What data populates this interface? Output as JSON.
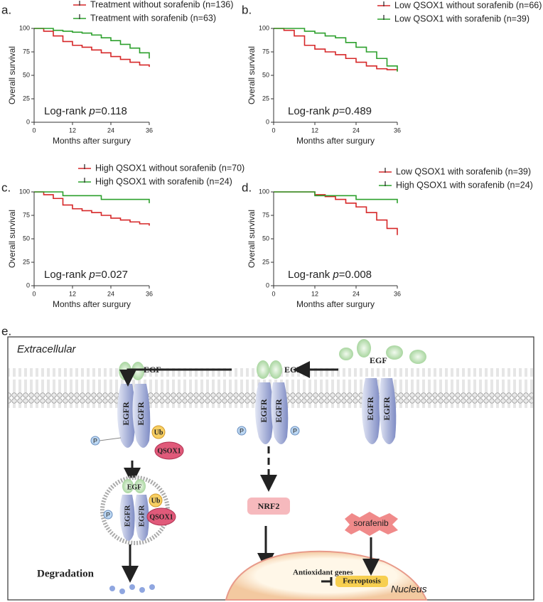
{
  "chart_data": [
    {
      "type": "line",
      "panel": "a.",
      "xlabel": "Months after surgury",
      "ylabel": "Overall survival",
      "annotation": [
        "Log-rank ",
        "p",
        "=0.118"
      ],
      "x": [
        0,
        3,
        6,
        9,
        12,
        15,
        18,
        21,
        24,
        27,
        30,
        33,
        36
      ],
      "series": [
        {
          "name": "Treatment without sorafenib (n=136)",
          "color": "#d62728",
          "values": [
            100,
            97,
            92,
            86,
            82,
            80,
            77,
            74,
            70,
            67,
            64,
            61,
            59
          ]
        },
        {
          "name": "Treatment with sorafenib (n=63)",
          "color": "#2ca02c",
          "values": [
            100,
            100,
            98,
            97,
            96,
            95,
            93,
            90,
            87,
            83,
            79,
            74,
            68
          ]
        }
      ],
      "xlim": [
        0,
        36
      ],
      "xticks": [
        0,
        12,
        24,
        36
      ],
      "ylim": [
        0,
        100
      ],
      "yticks": [
        0,
        25,
        50,
        75,
        100
      ]
    },
    {
      "type": "line",
      "panel": "b.",
      "xlabel": "Months after surgury",
      "ylabel": "Overall survival",
      "annotation": [
        "Log-rank ",
        "p",
        "=0.489"
      ],
      "x": [
        0,
        3,
        6,
        9,
        12,
        15,
        18,
        21,
        24,
        27,
        30,
        33,
        36
      ],
      "series": [
        {
          "name": "Low QSOX1 without sorafenib (n=66)",
          "color": "#d62728",
          "values": [
            100,
            98,
            92,
            82,
            78,
            75,
            72,
            68,
            64,
            60,
            57,
            56,
            55
          ]
        },
        {
          "name": "Low QSOX1 with sorafenib (n=39)",
          "color": "#2ca02c",
          "values": [
            100,
            100,
            100,
            97,
            95,
            92,
            90,
            85,
            80,
            75,
            68,
            60,
            54
          ]
        }
      ],
      "xlim": [
        0,
        36
      ],
      "xticks": [
        0,
        12,
        24,
        36
      ],
      "ylim": [
        0,
        100
      ],
      "yticks": [
        0,
        25,
        50,
        75,
        100
      ]
    },
    {
      "type": "line",
      "panel": "c.",
      "xlabel": "Months after surgury",
      "ylabel": "Overall survival",
      "annotation": [
        "Log-rank ",
        "p",
        "=0.027"
      ],
      "x": [
        0,
        3,
        6,
        9,
        12,
        15,
        18,
        21,
        24,
        27,
        30,
        33,
        36
      ],
      "series": [
        {
          "name": "High QSOX1 without sorafenib (n=70)",
          "color": "#d62728",
          "values": [
            100,
            97,
            93,
            86,
            82,
            80,
            78,
            75,
            72,
            70,
            68,
            66,
            64
          ]
        },
        {
          "name": "High QSOX1 with sorafenib (n=24)",
          "color": "#2ca02c",
          "values": [
            100,
            100,
            100,
            96,
            96,
            96,
            96,
            92,
            92,
            92,
            92,
            92,
            88
          ]
        }
      ],
      "xlim": [
        0,
        36
      ],
      "xticks": [
        0,
        12,
        24,
        36
      ],
      "ylim": [
        0,
        100
      ],
      "yticks": [
        0,
        25,
        50,
        75,
        100
      ]
    },
    {
      "type": "line",
      "panel": "d.",
      "xlabel": "Months after surgury",
      "ylabel": "Overall survival",
      "annotation": [
        "Log-rank ",
        "p",
        "=0.008"
      ],
      "x": [
        0,
        3,
        6,
        9,
        12,
        15,
        18,
        21,
        24,
        27,
        30,
        33,
        36
      ],
      "series": [
        {
          "name": "Low QSOX1 with sorafenib (n=39)",
          "color": "#d62728",
          "values": [
            100,
            100,
            100,
            100,
            97,
            95,
            92,
            88,
            84,
            78,
            70,
            61,
            54
          ]
        },
        {
          "name": "High QSOX1 with sorafenib (n=24)",
          "color": "#2ca02c",
          "values": [
            100,
            100,
            100,
            100,
            96,
            96,
            96,
            96,
            92,
            92,
            92,
            92,
            88
          ]
        }
      ],
      "xlim": [
        0,
        36
      ],
      "xticks": [
        0,
        12,
        24,
        36
      ],
      "ylim": [
        0,
        100
      ],
      "yticks": [
        0,
        25,
        50,
        75,
        100
      ]
    }
  ],
  "diagram": {
    "panel": "e.",
    "extracellular": "Extracellular",
    "egf": "EGF",
    "egfr": "EGFR",
    "p": "P",
    "ub": "Ub",
    "qsox1": "QSOX1",
    "degradation": "Degradation",
    "nrf2": "NRF2",
    "antioxidant": "Antioxidant genes",
    "ferroptosis": "Ferroptosis",
    "sorafenib": "sorafenib",
    "nucleus": "Nucleus"
  }
}
